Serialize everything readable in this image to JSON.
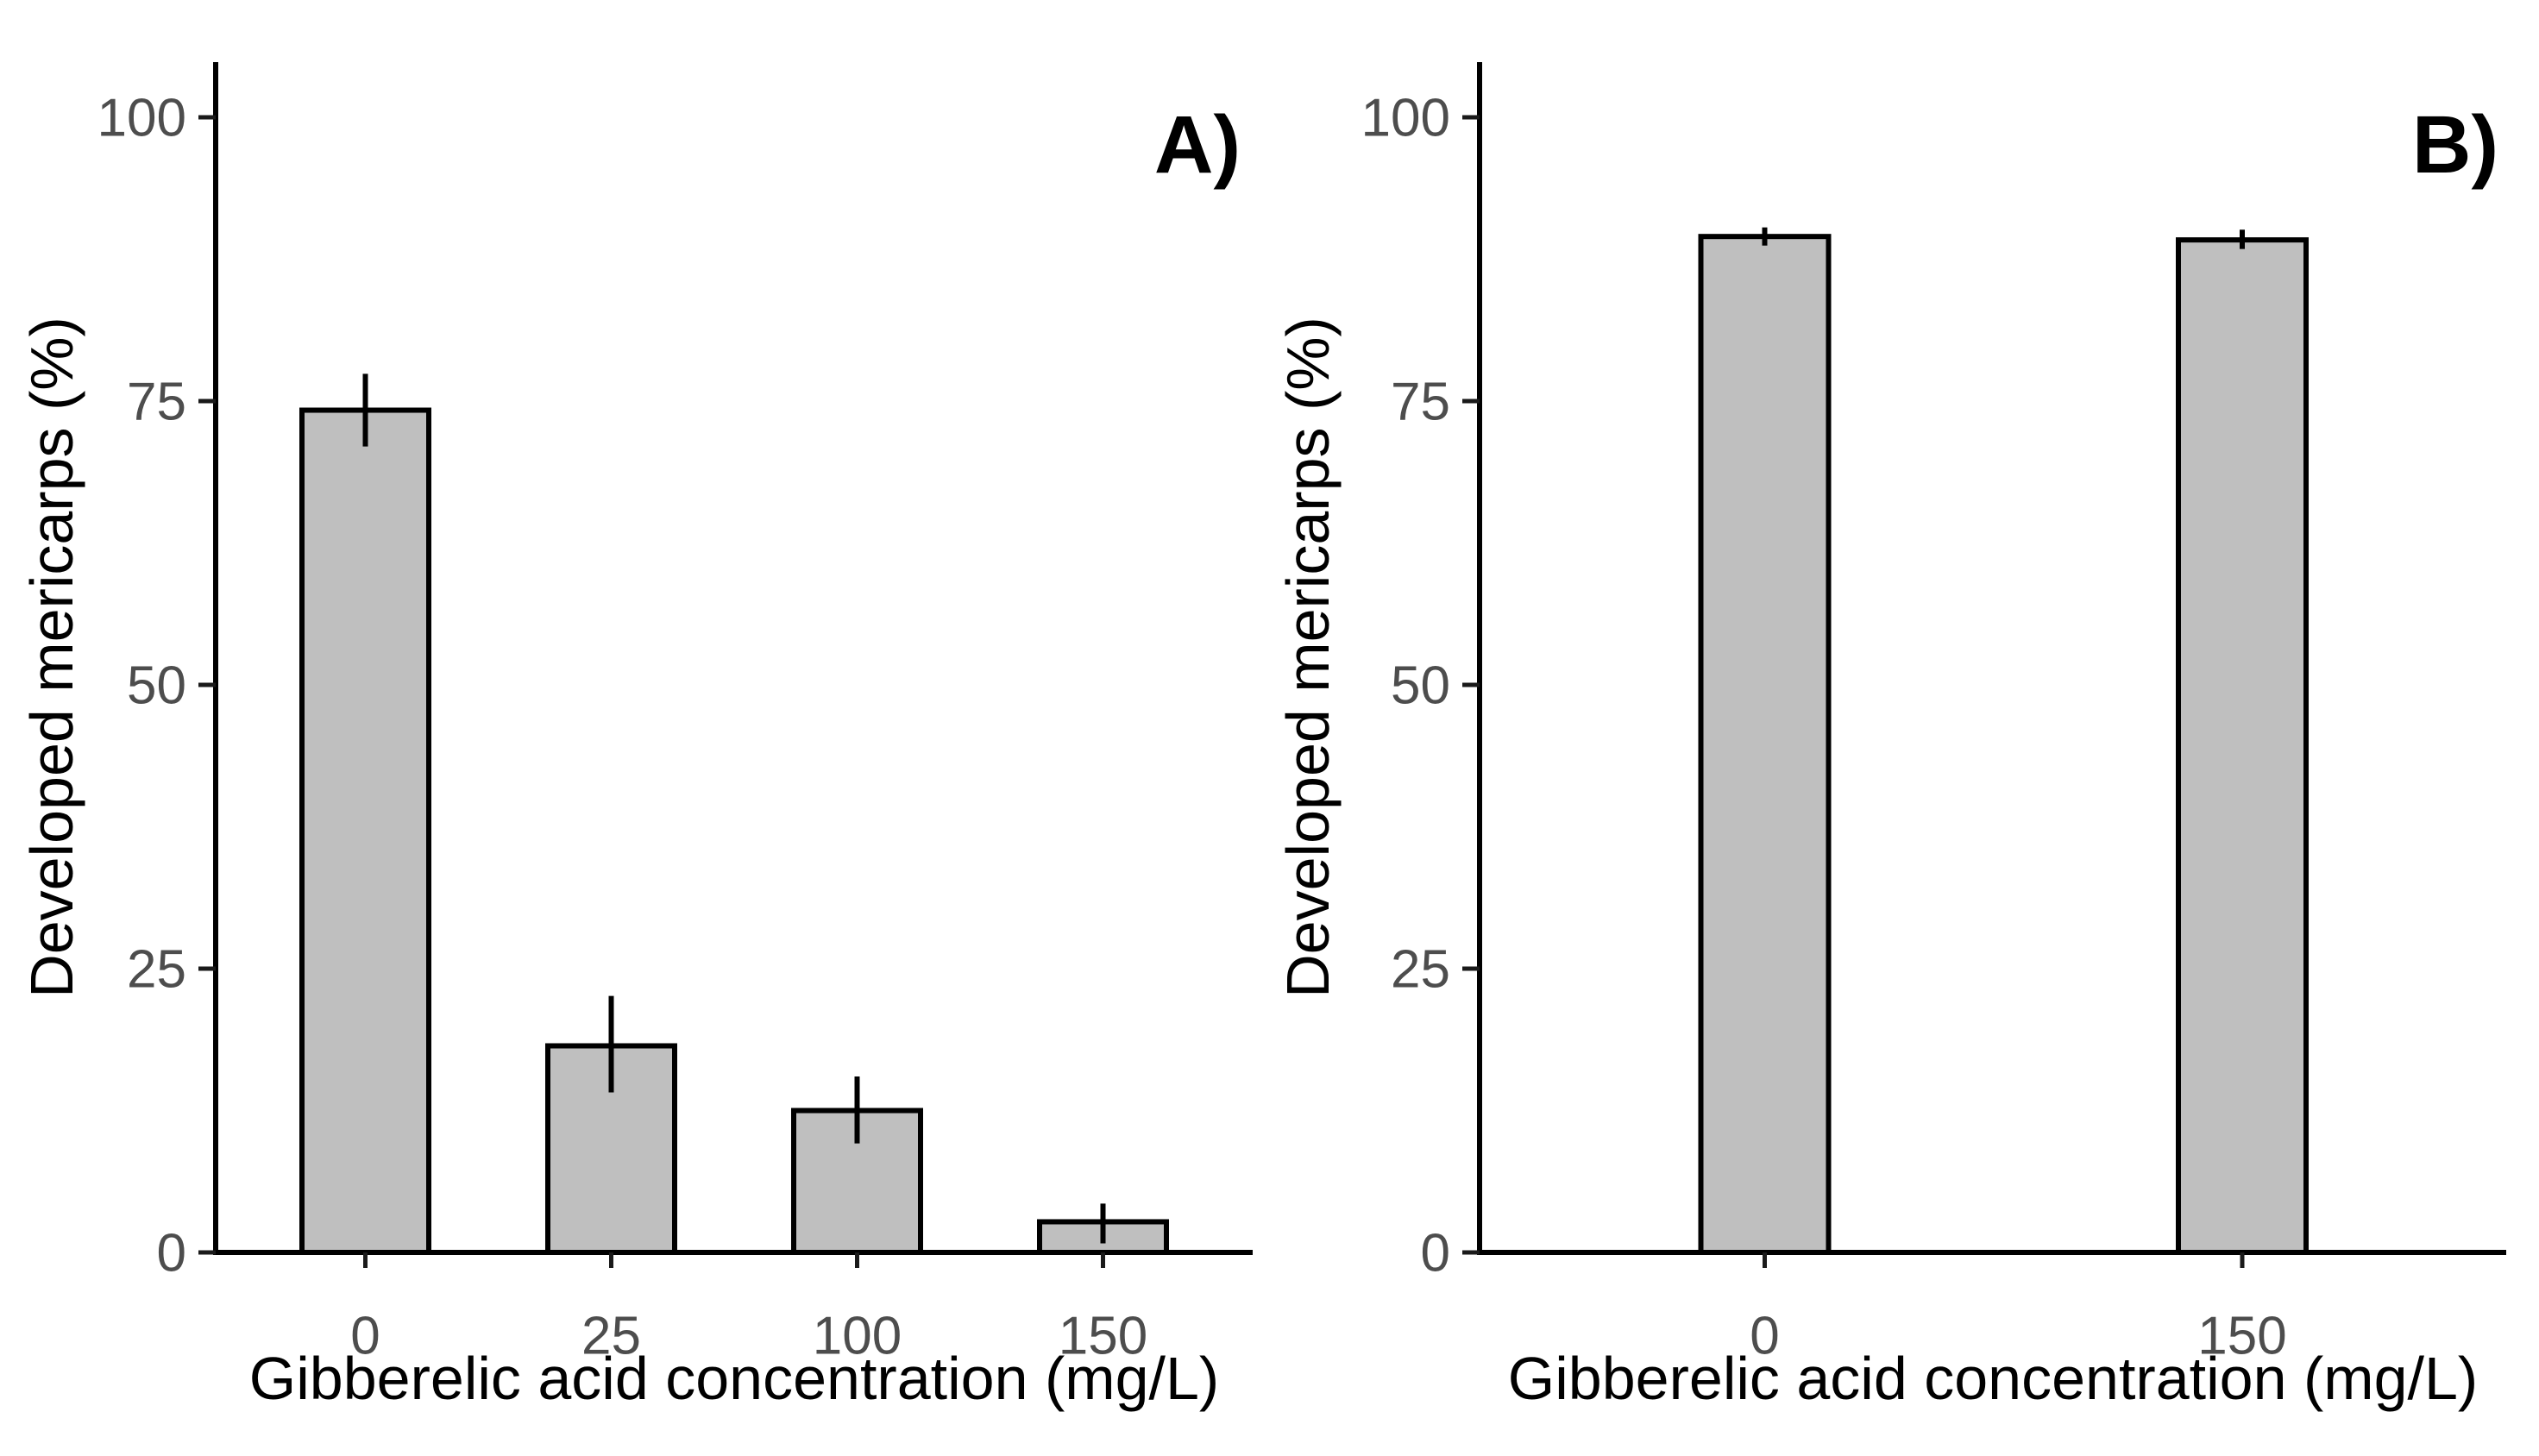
{
  "figure": {
    "background": "#ffffff",
    "description": "Two-panel bar chart of developed mericarps percentage vs gibberelic acid concentration"
  },
  "chart_data": [
    {
      "type": "bar",
      "panel_label": "A)",
      "xlabel": "Gibberelic acid concentration (mg/L)",
      "ylabel": "Developed mericarps (%)",
      "categories": [
        "0",
        "25",
        "100",
        "150"
      ],
      "values": [
        74.2,
        18.2,
        12.5,
        2.7
      ],
      "error_low": [
        71.0,
        14.1,
        9.6,
        0.8
      ],
      "error_high": [
        77.4,
        22.6,
        15.5,
        4.3
      ],
      "yticks": [
        0,
        25,
        50,
        75,
        100
      ],
      "ylim": [
        0,
        105
      ],
      "grid": false,
      "legend": "none",
      "bar_fill": "#bfbfbf",
      "bar_stroke": "#000000",
      "axis_color": "#000000",
      "tick_color": "#1a1a1a",
      "tick_label_color": "#4d4d4d"
    },
    {
      "type": "bar",
      "panel_label": "B)",
      "xlabel": "Gibberelic acid concentration (mg/L)",
      "ylabel": "Developed mericarps (%)",
      "categories": [
        "0",
        "150"
      ],
      "values": [
        89.5,
        89.2
      ],
      "error_low": [
        88.7,
        88.4
      ],
      "error_high": [
        90.3,
        90.1
      ],
      "yticks": [
        0,
        25,
        50,
        75,
        100
      ],
      "ylim": [
        0,
        105
      ],
      "grid": false,
      "legend": "none",
      "bar_fill": "#bfbfbf",
      "bar_stroke": "#000000",
      "axis_color": "#000000",
      "tick_color": "#1a1a1a",
      "tick_label_color": "#4d4d4d"
    }
  ]
}
